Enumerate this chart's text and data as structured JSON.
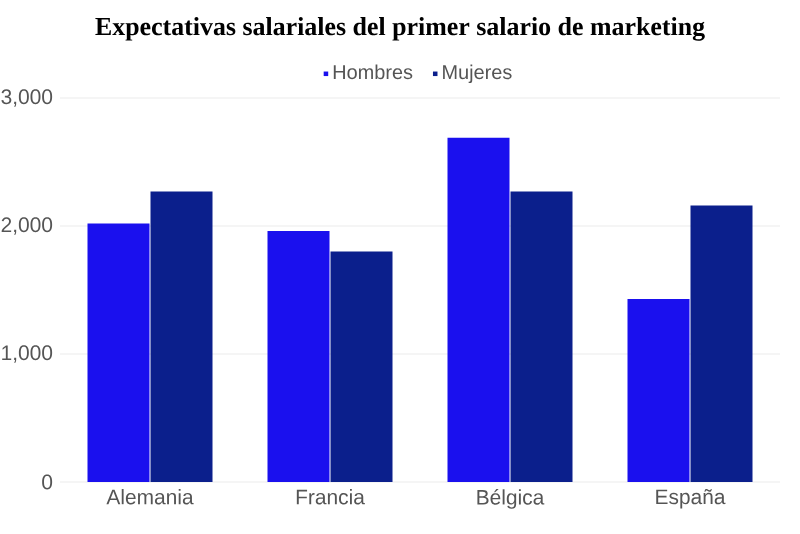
{
  "chart_data": {
    "type": "bar",
    "title": "Expectativas salariales del primer salario de marketing",
    "categories": [
      "Alemania",
      "Francia",
      "Bélgica",
      "España"
    ],
    "series": [
      {
        "name": "Hombres",
        "color": "#1a10ee",
        "values": [
          2020,
          1960,
          2690,
          1430
        ]
      },
      {
        "name": "Mujeres",
        "color": "#0b1f8c",
        "values": [
          2270,
          1800,
          2270,
          2160
        ]
      }
    ],
    "ylim": [
      0,
      3000
    ],
    "yticks": [
      {
        "value": 0,
        "label": "0"
      },
      {
        "value": 1000,
        "label": "1,000"
      },
      {
        "value": 2000,
        "label": "2,000"
      },
      {
        "value": 3000,
        "label": "3,000"
      }
    ],
    "grid": "y",
    "legend": "top"
  }
}
